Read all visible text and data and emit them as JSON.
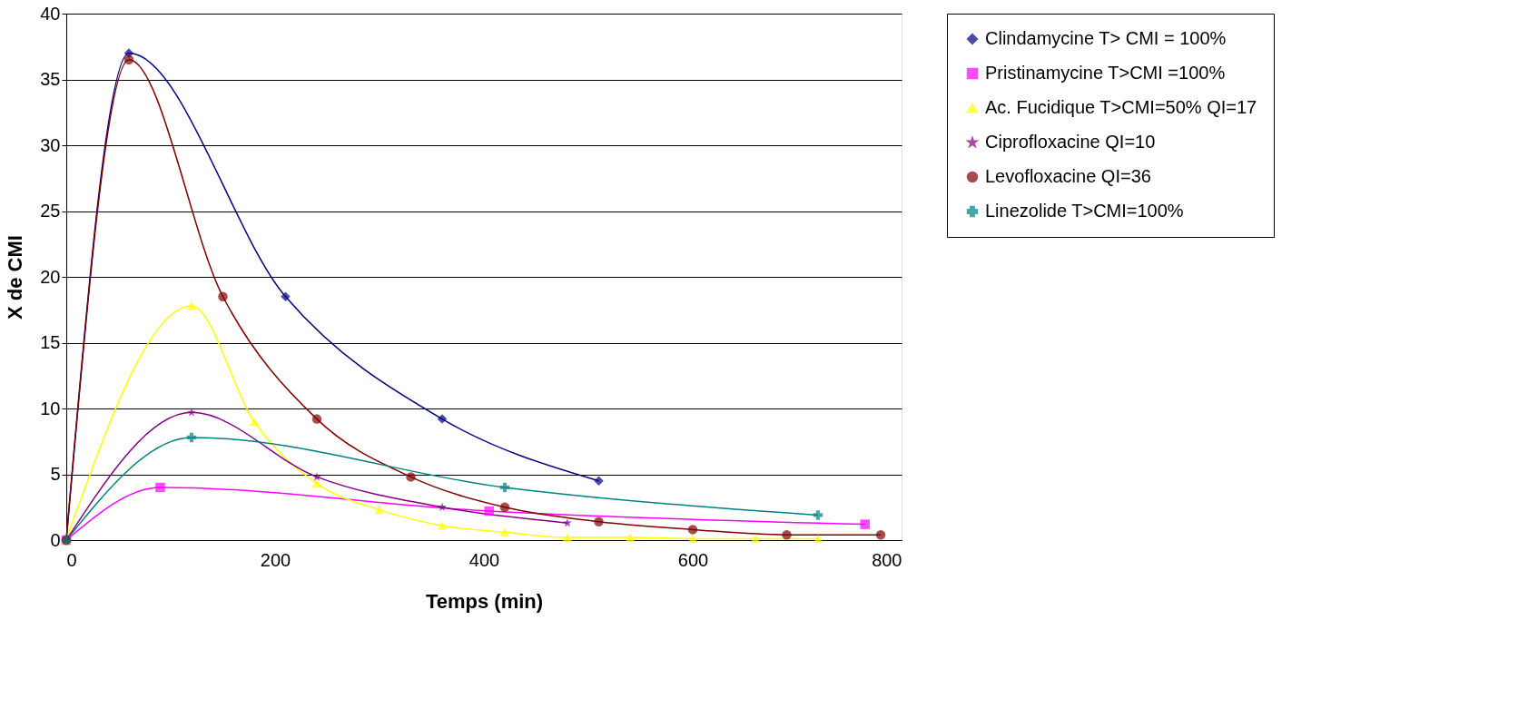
{
  "chart_data": {
    "type": "line",
    "xlabel": "Temps (min)",
    "ylabel": "X de CMI",
    "xlim": [
      0,
      800
    ],
    "xticks": [
      0,
      200,
      400,
      600,
      800
    ],
    "ylim": [
      0,
      40
    ],
    "yticks": [
      0,
      5,
      10,
      15,
      20,
      25,
      30,
      35,
      40
    ],
    "grid": "y",
    "legend": "right",
    "line_style": "solid",
    "series": [
      {
        "name": "Clindamycine T> CMI = 100%",
        "color": "#000080",
        "marker": "diamond",
        "x": [
          0,
          60,
          210,
          360,
          510
        ],
        "values": [
          0,
          37,
          18.5,
          9.2,
          4.5
        ]
      },
      {
        "name": "Pristinamycine T>CMI =100%",
        "color": "#ff00ff",
        "marker": "square",
        "x": [
          0,
          90,
          405,
          765
        ],
        "values": [
          0,
          4,
          2.2,
          1.2
        ]
      },
      {
        "name": "Ac. Fucidique T>CMI=50% QI=17",
        "color": "#ffff00",
        "marker": "triangle",
        "x": [
          0,
          120,
          180,
          240,
          300,
          360,
          420,
          480,
          540,
          600,
          660,
          720
        ],
        "values": [
          0,
          17.8,
          9,
          4.3,
          2.3,
          1.1,
          0.6,
          0.2,
          0.2,
          0.1,
          0.1,
          0.1
        ]
      },
      {
        "name": "Ciprofloxacine QI=10",
        "color": "#800080",
        "marker": "star",
        "x": [
          0,
          120,
          240,
          360,
          480
        ],
        "values": [
          0,
          9.7,
          4.8,
          2.5,
          1.3
        ]
      },
      {
        "name": "Levofloxacine QI=36",
        "color": "#800000",
        "marker": "circle",
        "x": [
          0,
          60,
          150,
          240,
          330,
          420,
          510,
          600,
          690,
          780
        ],
        "values": [
          0,
          36.5,
          18.5,
          9.2,
          4.8,
          2.5,
          1.4,
          0.8,
          0.4,
          0.4
        ]
      },
      {
        "name": "Linezolide T>CMI=100%",
        "color": "#008080",
        "marker": "cross",
        "x": [
          0,
          120,
          420,
          720
        ],
        "values": [
          0,
          7.8,
          4,
          1.9
        ]
      }
    ]
  }
}
